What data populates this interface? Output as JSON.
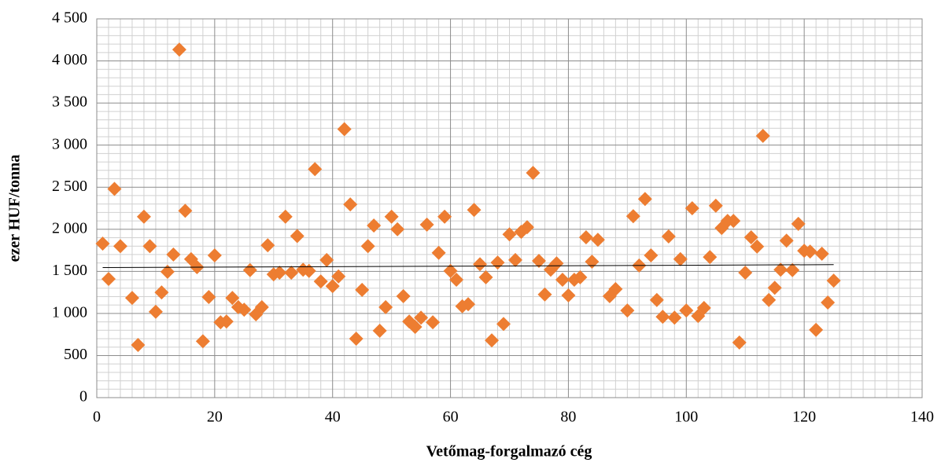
{
  "chart_data": {
    "type": "scatter",
    "xlabel": "Vetőmag-forgalmazó cég",
    "ylabel": "ezer HUF/tonna",
    "x": [
      1,
      2,
      3,
      4,
      6,
      7,
      8,
      9,
      10,
      11,
      12,
      13,
      14,
      15,
      16,
      17,
      18,
      19,
      20,
      21,
      22,
      23,
      24,
      25,
      26,
      27,
      28,
      29,
      30,
      31,
      32,
      33,
      34,
      35,
      36,
      37,
      38,
      39,
      40,
      41,
      42,
      43,
      44,
      45,
      46,
      47,
      48,
      49,
      50,
      51,
      52,
      53,
      54,
      55,
      56,
      57,
      58,
      59,
      60,
      61,
      62,
      63,
      64,
      65,
      66,
      67,
      68,
      69,
      70,
      71,
      72,
      73,
      74,
      75,
      76,
      77,
      78,
      79,
      80,
      81,
      82,
      83,
      84,
      85,
      87,
      88,
      90,
      91,
      92,
      93,
      94,
      95,
      96,
      97,
      98,
      99,
      100,
      101,
      102,
      103,
      104,
      105,
      106,
      107,
      108,
      109,
      110,
      111,
      112,
      113,
      114,
      115,
      116,
      117,
      118,
      119,
      120,
      121,
      122,
      123,
      124,
      125
    ],
    "series": [
      {
        "color": "#ed7d31",
        "values": [
          1830,
          1410,
          2480,
          1800,
          1185,
          625,
          2150,
          1800,
          1020,
          1250,
          1495,
          1700,
          4135,
          2220,
          1645,
          1550,
          670,
          1195,
          1690,
          895,
          905,
          1185,
          1075,
          1045,
          1515,
          990,
          1075,
          1810,
          1465,
          1485,
          2150,
          1485,
          1920,
          1520,
          1505,
          2715,
          1380,
          1635,
          1325,
          1440,
          3190,
          2295,
          700,
          1280,
          1800,
          2045,
          795,
          1075,
          2150,
          2000,
          1205,
          905,
          840,
          950,
          2055,
          895,
          1720,
          2150,
          1505,
          1400,
          1085,
          1110,
          2230,
          1585,
          1430,
          680,
          1605,
          875,
          1940,
          1635,
          1970,
          2025,
          2670,
          1625,
          1225,
          1520,
          1595,
          1400,
          1215,
          1400,
          1430,
          1905,
          1615,
          1875,
          1205,
          1290,
          1035,
          2155,
          1570,
          2360,
          1690,
          1160,
          960,
          1915,
          950,
          1645,
          1035,
          2250,
          970,
          1065,
          1670,
          2280,
          2015,
          2100,
          2100,
          655,
          1485,
          1905,
          1795,
          3110,
          1160,
          1305,
          1520,
          1865,
          1515,
          2065,
          1745,
          1735,
          805,
          1710,
          1130,
          1390
        ]
      }
    ],
    "trendline": {
      "x": [
        1,
        125
      ],
      "y": [
        1545,
        1580
      ],
      "color": "#000000"
    },
    "xlim": [
      0,
      140
    ],
    "xticks": [
      0,
      20,
      40,
      60,
      80,
      100,
      120,
      140
    ],
    "ylim": [
      0,
      4500
    ],
    "yticks": [
      0,
      500,
      {
        "value": 1000,
        "label": "1 000"
      },
      {
        "value": 1500,
        "label": "1 500"
      },
      {
        "value": 2000,
        "label": "2 000"
      },
      {
        "value": 2500,
        "label": "2 500"
      },
      {
        "value": 3000,
        "label": "3 000"
      },
      {
        "value": 3500,
        "label": "3 500"
      },
      {
        "value": 4000,
        "label": "4 000"
      },
      {
        "value": 4500,
        "label": "4 500"
      }
    ],
    "grid": true,
    "minor_grid": true
  }
}
